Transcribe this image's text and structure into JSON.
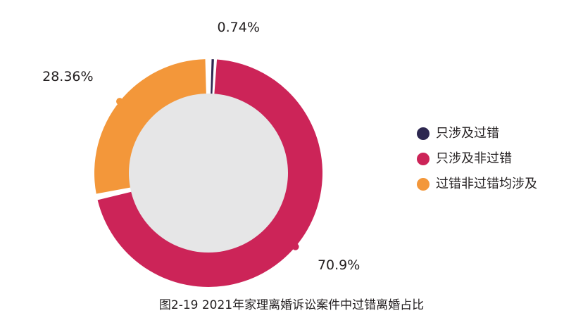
{
  "chart_data": {
    "type": "pie",
    "variant": "donut",
    "title": "图2-19  2021年家理离婚诉讼案件中过错离婚占比",
    "slices": [
      {
        "label": "只涉及过错",
        "value": 0.74,
        "display": "0.74%",
        "color": "#2d2750"
      },
      {
        "label": "只涉及非过错",
        "value": 70.9,
        "display": "70.9%",
        "color": "#cc2458"
      },
      {
        "label": "过错非过错均涉及",
        "value": 28.36,
        "display": "28.36%",
        "color": "#f3973a"
      }
    ],
    "center_color": "#e6e6e7",
    "legend_position": "right"
  }
}
